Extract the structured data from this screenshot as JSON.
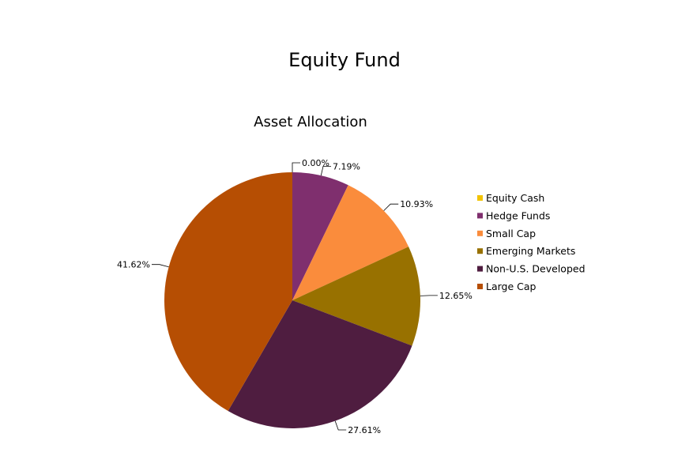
{
  "page_title": "Equity Fund",
  "chart_data": {
    "type": "pie",
    "title": "Asset Allocation",
    "legend_position": "right",
    "slices": [
      {
        "name": "Equity Cash",
        "value": 0.0,
        "label": "0.00%",
        "color": "#F2C300"
      },
      {
        "name": "Hedge Funds",
        "value": 7.19,
        "label": "7.19%",
        "color": "#7F2F6E"
      },
      {
        "name": "Small Cap",
        "value": 10.93,
        "label": "10.93%",
        "color": "#FA8C3C"
      },
      {
        "name": "Emerging Markets",
        "value": 12.65,
        "label": "12.65%",
        "color": "#987100"
      },
      {
        "name": "Non-U.S. Developed",
        "value": 27.61,
        "label": "27.61%",
        "color": "#4F1D40"
      },
      {
        "name": "Large Cap",
        "value": 41.62,
        "label": "41.62%",
        "color": "#B64E03"
      }
    ]
  }
}
